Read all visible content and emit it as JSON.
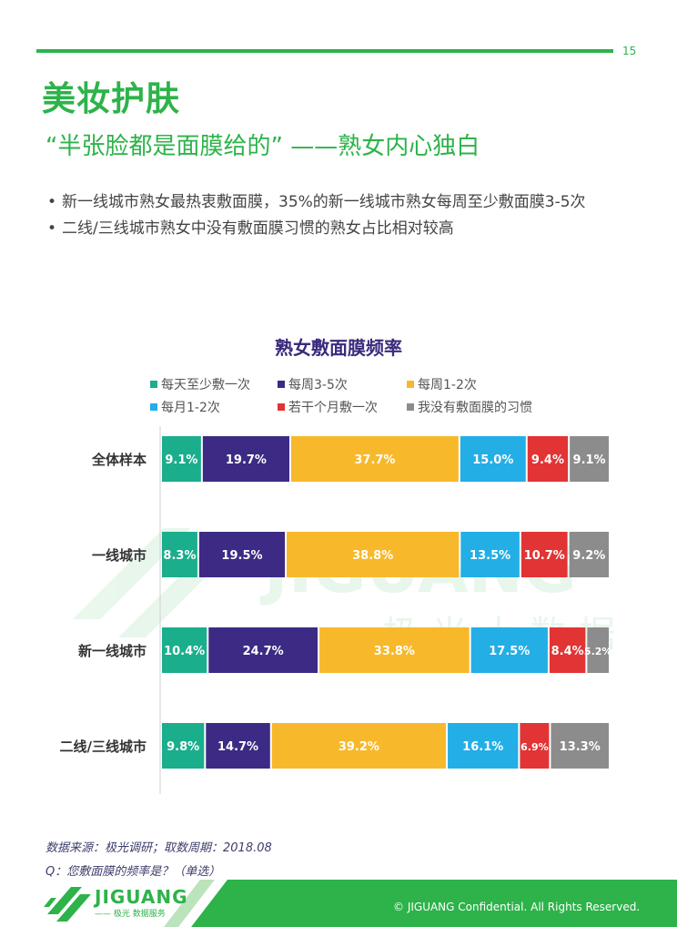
{
  "page": {
    "number": "15",
    "section_title": "美妆护肤",
    "subtitle": "“半张脸都是面膜给的” ——熟女内心独白",
    "bullets": [
      "新一线城市熟女最热衷敷面膜，35%的新一线城市熟女每周至少敷面膜3-5次",
      "二线/三线城市熟女中没有敷面膜习惯的熟女占比相对较高"
    ],
    "bullet_symbol": "•"
  },
  "watermark": {
    "text": "JIGUANG",
    "subtext": "极光大数据"
  },
  "chart_data": {
    "type": "bar",
    "orientation": "horizontal",
    "stacked": true,
    "title": "熟女敷面膜频率",
    "categories": [
      "全体样本",
      "一线城市",
      "新一线城市",
      "二线/三线城市"
    ],
    "series": [
      {
        "name": "每天至少敷一次",
        "color": "#1aae8d",
        "values": [
          9.1,
          8.3,
          10.4,
          9.8
        ],
        "labels": [
          "9.1%",
          "8.3%",
          "10.4%",
          "9.8%"
        ]
      },
      {
        "name": "每周3-5次",
        "color": "#3c2a84",
        "values": [
          19.7,
          19.5,
          24.7,
          14.7
        ],
        "labels": [
          "19.7%",
          "19.5%",
          "24.7%",
          "14.7%"
        ]
      },
      {
        "name": "每周1-2次",
        "color": "#f7b92b",
        "values": [
          37.7,
          38.8,
          33.8,
          39.2
        ],
        "labels": [
          "37.7%",
          "38.8%",
          "33.8%",
          "39.2%"
        ]
      },
      {
        "name": "每月1-2次",
        "color": "#23aee6",
        "values": [
          15.0,
          13.5,
          17.5,
          16.1
        ],
        "labels": [
          "15.0%",
          "13.5%",
          "17.5%",
          "16.1%"
        ]
      },
      {
        "name": "若干个月敷一次",
        "color": "#e23434",
        "values": [
          9.4,
          10.7,
          8.4,
          6.9
        ],
        "labels": [
          "9.4%",
          "10.7%",
          "8.4%",
          "6.9%"
        ]
      },
      {
        "name": "我没有敷面膜的习惯",
        "color": "#8c8c8c",
        "values": [
          9.1,
          9.2,
          5.2,
          13.3
        ],
        "labels": [
          "9.1%",
          "9.2%",
          "5.2%",
          "13.3%"
        ]
      }
    ],
    "xlim": [
      0,
      100
    ],
    "legend_position": "top",
    "grid": false
  },
  "footer": {
    "source": "数据来源：极光调研；取数周期：2018.08",
    "question": "Q：您敷面膜的频率是？（单选）",
    "logo_name": "JIGUANG",
    "logo_tagline": "—— 极光 数据服务",
    "copyright": "© JIGUANG Confidential. All Rights Reserved."
  },
  "colors": {
    "brand_green": "#2db34a",
    "title_purple": "#3c2a7c"
  }
}
